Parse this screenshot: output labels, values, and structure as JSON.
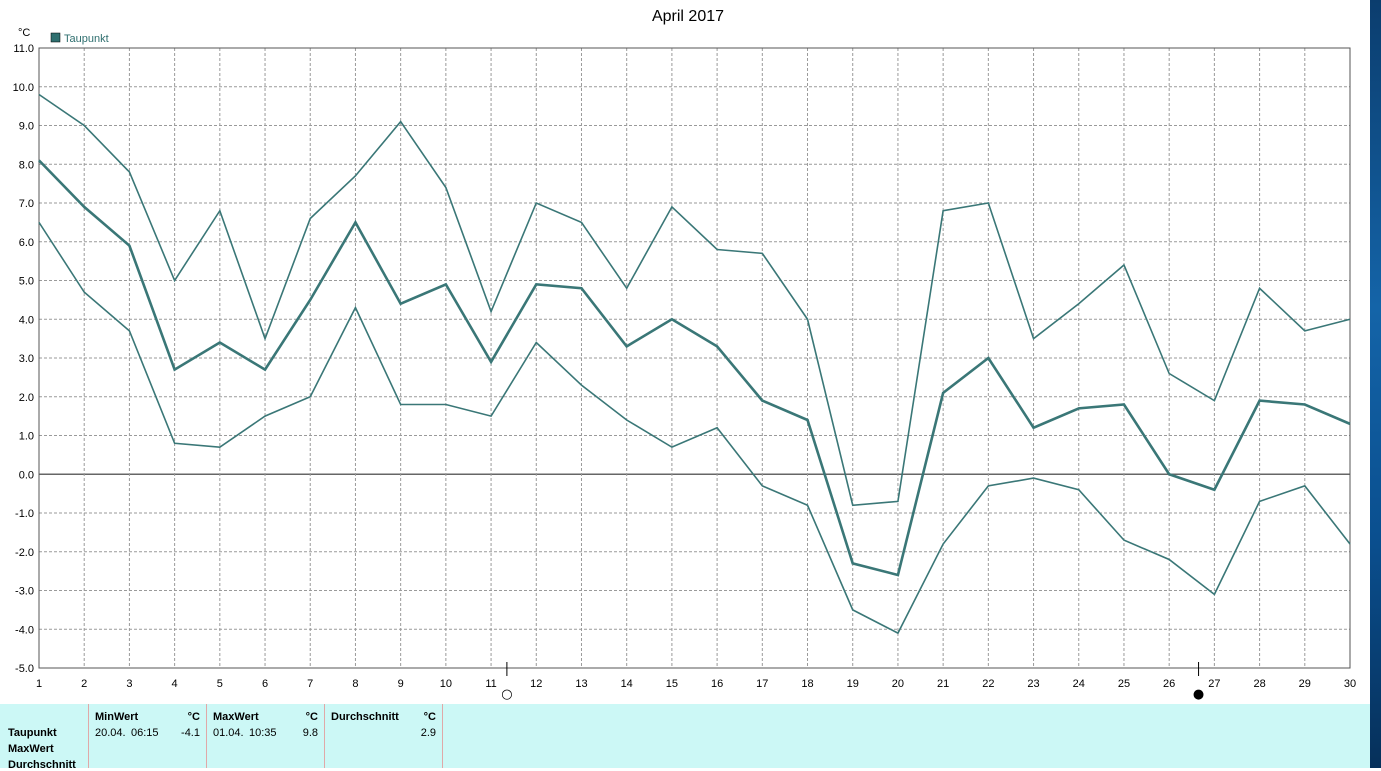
{
  "chart_data": {
    "type": "line",
    "title": "April 2017",
    "ylabel": "°C",
    "legend": [
      "Taupunkt"
    ],
    "legend_color": "#2f6f6f",
    "legend_placement": "top-left",
    "grid": true,
    "ylim": [
      -5.0,
      11.0
    ],
    "yticks": [
      "11.0",
      "10.0",
      "9.0",
      "8.0",
      "7.0",
      "6.0",
      "5.0",
      "4.0",
      "3.0",
      "2.0",
      "1.0",
      "0.0",
      "-1.0",
      "-2.0",
      "-3.0",
      "-4.0",
      "-5.0"
    ],
    "x": [
      1,
      2,
      3,
      4,
      5,
      6,
      7,
      8,
      9,
      10,
      11,
      12,
      13,
      14,
      15,
      16,
      17,
      18,
      19,
      20,
      21,
      22,
      23,
      24,
      25,
      26,
      27,
      28,
      29,
      30
    ],
    "series": [
      {
        "role": "max",
        "color": "#3a7777",
        "values": [
          9.8,
          9.0,
          7.8,
          5.0,
          6.8,
          3.5,
          6.6,
          7.7,
          9.1,
          7.4,
          4.2,
          7.0,
          6.5,
          4.8,
          6.9,
          5.8,
          5.7,
          4.0,
          -0.8,
          -0.7,
          6.8,
          7.0,
          3.5,
          4.4,
          5.4,
          2.6,
          1.9,
          4.8,
          3.7,
          4.0
        ]
      },
      {
        "role": "avg",
        "color": "#3a7777",
        "values": [
          8.1,
          6.9,
          5.9,
          2.7,
          3.4,
          2.7,
          4.5,
          6.5,
          4.4,
          4.9,
          2.9,
          4.9,
          4.8,
          3.3,
          4.0,
          3.3,
          1.9,
          1.4,
          -2.3,
          -2.6,
          2.1,
          3.0,
          1.2,
          1.7,
          1.8,
          0.0,
          -0.4,
          1.9,
          1.8,
          1.3
        ]
      },
      {
        "role": "min",
        "color": "#3a7777",
        "values": [
          6.5,
          4.7,
          3.7,
          0.8,
          0.7,
          1.5,
          2.0,
          4.3,
          1.8,
          1.8,
          1.5,
          3.4,
          2.3,
          1.4,
          0.7,
          1.2,
          -0.3,
          -0.8,
          -3.5,
          -4.1,
          -1.8,
          -0.3,
          -0.1,
          -0.4,
          -1.7,
          -2.2,
          -3.1,
          -0.7,
          -0.3,
          -1.8
        ]
      }
    ],
    "moon_phases": [
      {
        "day": 11.35,
        "symbol": "○"
      },
      {
        "day": 26.65,
        "symbol": "●"
      }
    ]
  },
  "stats": {
    "rows": [
      "Taupunkt",
      "MaxWert",
      "Durchschnitt"
    ],
    "min": {
      "head": "MinWert",
      "unit": "°C",
      "date": "20.04.",
      "time": "06:15",
      "value": "-4.1"
    },
    "max": {
      "head": "MaxWert",
      "unit": "°C",
      "date": "01.04.",
      "time": "10:35",
      "value": "9.8"
    },
    "avg": {
      "head": "Durchschnitt",
      "unit": "°C",
      "value": "2.9"
    }
  }
}
